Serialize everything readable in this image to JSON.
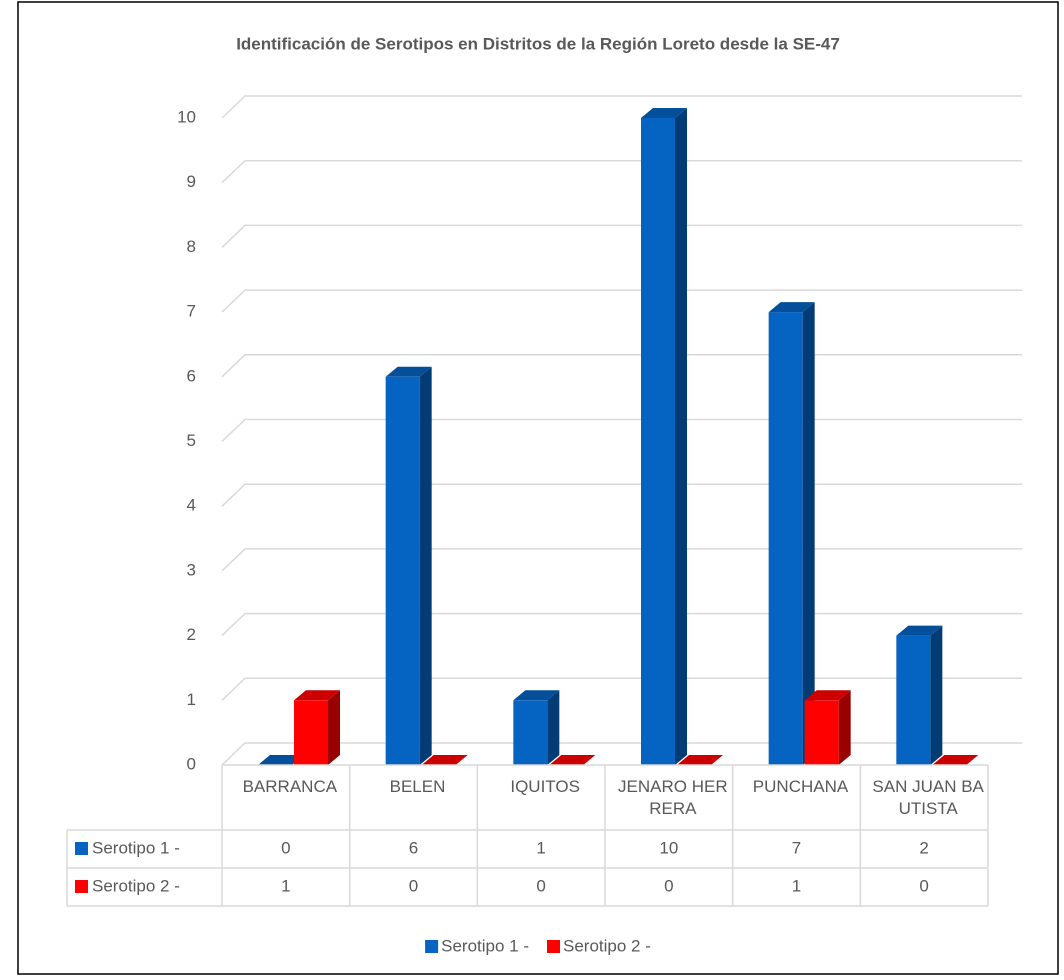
{
  "chart_data": {
    "type": "bar",
    "title": "Identificación de Serotipos en Distritos de la Región Loreto desde la SE-47",
    "categories": [
      "BARRANCA",
      "BELEN",
      "IQUITOS",
      "JENARO HERRERA",
      "PUNCHANA",
      "SAN JUAN BAUTISTA"
    ],
    "series": [
      {
        "name": "Serotipo 1 -",
        "color": "#0563c1",
        "values": [
          0,
          6,
          1,
          10,
          7,
          2
        ]
      },
      {
        "name": "Serotipo 2 -",
        "color": "#ff0000",
        "values": [
          1,
          0,
          0,
          0,
          1,
          0
        ]
      }
    ],
    "ylim": [
      0,
      10
    ],
    "yticks": [
      0,
      1,
      2,
      3,
      4,
      5,
      6,
      7,
      8,
      9,
      10
    ],
    "grid": true,
    "data_table": true,
    "legend": "bottom"
  }
}
